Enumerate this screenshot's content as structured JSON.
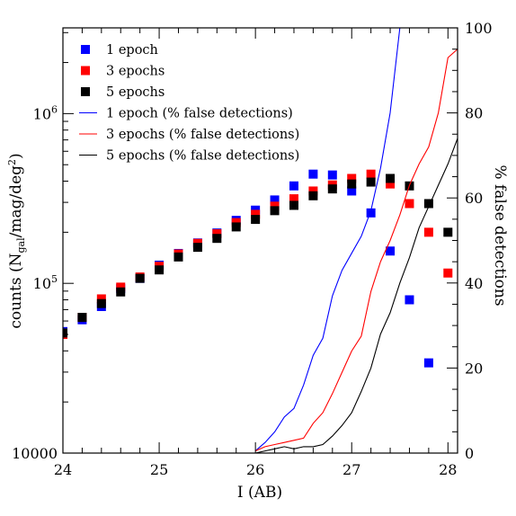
{
  "chart_data": {
    "type": "scatter",
    "xlabel": "I (AB)",
    "ylabel_left": "counts (N",
    "ylabel_left_sub": "gal",
    "ylabel_left_tail": "/mag/deg",
    "ylabel_left_sup": "2",
    "ylabel_left_close": ")",
    "ylabel_right": "% false detections",
    "xlim": [
      24.0,
      28.1
    ],
    "ylim_left": [
      10000,
      3200000
    ],
    "ylim_left_scale": "log",
    "ylim_right": [
      0,
      100
    ],
    "x_ticks": [
      24,
      25,
      26,
      27,
      28
    ],
    "x_tick_labels": [
      "24",
      "25",
      "26",
      "27",
      "28"
    ],
    "y_left_ticks": [
      10000,
      100000,
      1000000
    ],
    "y_left_tick_labels": [
      {
        "base": "10000",
        "sup": ""
      },
      {
        "base": "10",
        "sup": "5"
      },
      {
        "base": "10",
        "sup": "6"
      }
    ],
    "y_right_ticks": [
      0,
      20,
      40,
      60,
      80,
      100
    ],
    "y_right_tick_labels": [
      "0",
      "20",
      "40",
      "60",
      "80",
      "100"
    ],
    "series": [
      {
        "name": "1 epoch",
        "kind": "points",
        "axis": "left",
        "color": "#0000ff",
        "x": [
          24.0,
          24.2,
          24.4,
          24.6,
          24.8,
          25.0,
          25.2,
          25.4,
          25.6,
          25.8,
          26.0,
          26.2,
          26.4,
          26.6,
          26.8,
          27.0,
          27.2,
          27.4,
          27.6,
          27.8
        ],
        "y": [
          52000,
          61000,
          73000,
          93000,
          107000,
          128000,
          150000,
          173000,
          198000,
          235000,
          270000,
          310000,
          375000,
          440000,
          435000,
          350000,
          260000,
          155000,
          80000,
          34000
        ]
      },
      {
        "name": "3 epochs",
        "kind": "points",
        "axis": "left",
        "color": "#ff0000",
        "x": [
          24.0,
          24.2,
          24.4,
          24.6,
          24.8,
          25.0,
          25.2,
          25.4,
          25.6,
          25.8,
          26.0,
          26.2,
          26.4,
          26.6,
          26.8,
          27.0,
          27.2,
          27.4,
          27.6,
          27.8,
          28.0
        ],
        "y": [
          50000,
          63000,
          81000,
          95000,
          109000,
          126000,
          149000,
          172000,
          196000,
          228000,
          255000,
          285000,
          315000,
          350000,
          380000,
          415000,
          440000,
          385000,
          295000,
          200000,
          115000
        ]
      },
      {
        "name": "5 epochs",
        "kind": "points",
        "axis": "left",
        "color": "#000000",
        "x": [
          24.0,
          24.2,
          24.4,
          24.6,
          24.8,
          25.0,
          25.2,
          25.4,
          25.6,
          25.8,
          26.0,
          26.2,
          26.4,
          26.6,
          26.8,
          27.0,
          27.2,
          27.4,
          27.6,
          27.8,
          28.0
        ],
        "y": [
          51000,
          63000,
          76000,
          89000,
          107000,
          120000,
          143000,
          163000,
          184000,
          215000,
          238000,
          268000,
          288000,
          328000,
          360000,
          385000,
          395000,
          415000,
          375000,
          295000,
          200000
        ]
      },
      {
        "name": "1 epoch (% false detections)",
        "kind": "line",
        "axis": "right",
        "color": "#0000ff",
        "x": [
          26.0,
          26.1,
          26.2,
          26.3,
          26.4,
          26.5,
          26.6,
          26.7,
          26.8,
          26.9,
          27.0,
          27.1,
          27.2,
          27.3,
          27.4,
          27.5
        ],
        "y": [
          0.5,
          2.5,
          5,
          8.5,
          10.5,
          16,
          23,
          27,
          37,
          43,
          47,
          51,
          57,
          67,
          80,
          100
        ]
      },
      {
        "name": "3 epochs (% false detections)",
        "kind": "line",
        "axis": "right",
        "color": "#ff0000",
        "x": [
          26.0,
          26.1,
          26.2,
          26.3,
          26.4,
          26.5,
          26.6,
          26.7,
          26.8,
          26.9,
          27.0,
          27.1,
          27.2,
          27.3,
          27.4,
          27.5,
          27.6,
          27.7,
          27.8,
          27.9,
          28.0,
          28.1
        ],
        "y": [
          0.5,
          1.5,
          2,
          2.5,
          3,
          3.5,
          7,
          9.5,
          14,
          19,
          24,
          27.5,
          38,
          45,
          50,
          56,
          63,
          68,
          72,
          80,
          93,
          95
        ]
      },
      {
        "name": "5 epochs (% false detections)",
        "kind": "line",
        "axis": "right",
        "color": "#000000",
        "x": [
          26.0,
          26.1,
          26.2,
          26.3,
          26.4,
          26.5,
          26.6,
          26.7,
          26.8,
          26.9,
          27.0,
          27.1,
          27.2,
          27.3,
          27.4,
          27.5,
          27.6,
          27.7,
          27.8,
          27.9,
          28.0,
          28.1
        ],
        "y": [
          0,
          0.5,
          1,
          1.5,
          1,
          1.5,
          1.5,
          2,
          4,
          6.5,
          9.5,
          14.5,
          20,
          28,
          33,
          40,
          46,
          53,
          58,
          63,
          68,
          74
        ]
      }
    ],
    "legend_position": "top-left",
    "grid": false
  }
}
